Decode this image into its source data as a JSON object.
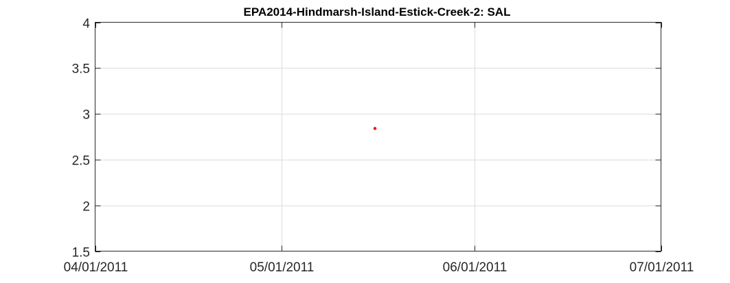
{
  "chart_data": {
    "type": "scatter",
    "title": "EPA2014-Hindmarsh-Island-Estick-Creek-2: SAL",
    "xlabel": "",
    "ylabel": "",
    "x_axis_type": "date",
    "xlim": [
      "04/01/2011",
      "07/01/2011"
    ],
    "xticks": [
      "04/01/2011",
      "05/01/2011",
      "06/01/2011",
      "07/01/2011"
    ],
    "ylim": [
      1.5,
      4
    ],
    "yticks": [
      "1.5",
      "2",
      "2.5",
      "3",
      "3.5",
      "4"
    ],
    "grid": true,
    "legend": "none",
    "series": [
      {
        "color": "#ff0000",
        "marker": "dot",
        "points": [
          {
            "x": "05/16/2011",
            "y": 2.84
          }
        ]
      }
    ]
  }
}
